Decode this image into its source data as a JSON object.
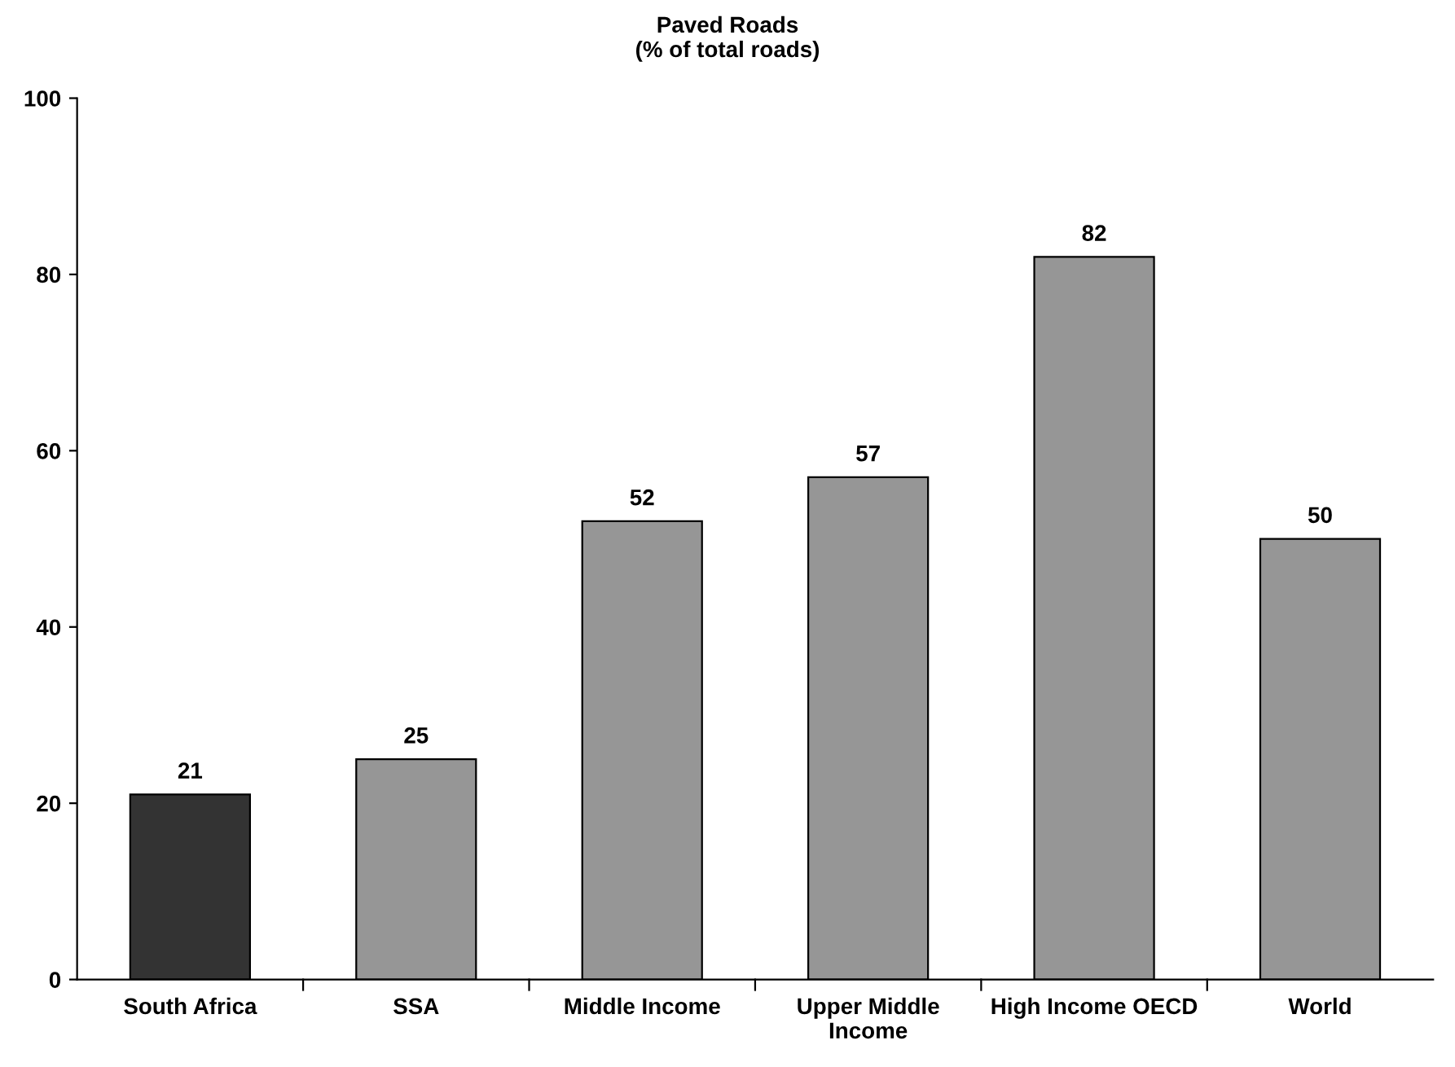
{
  "chart_data": {
    "type": "bar",
    "title": "Paved Roads",
    "subtitle": "(% of total roads)",
    "categories": [
      "South Africa",
      "SSA",
      "Middle Income",
      "Upper Middle\nIncome",
      "High Income OECD",
      "World"
    ],
    "values": [
      21,
      25,
      52,
      57,
      82,
      50
    ],
    "colors": [
      "#333333",
      "#969696",
      "#969696",
      "#969696",
      "#969696",
      "#969696"
    ],
    "ylim": [
      0,
      100
    ],
    "yticks": [
      0,
      20,
      40,
      60,
      80,
      100
    ],
    "grid": false,
    "data_labels": true,
    "legend": false
  }
}
